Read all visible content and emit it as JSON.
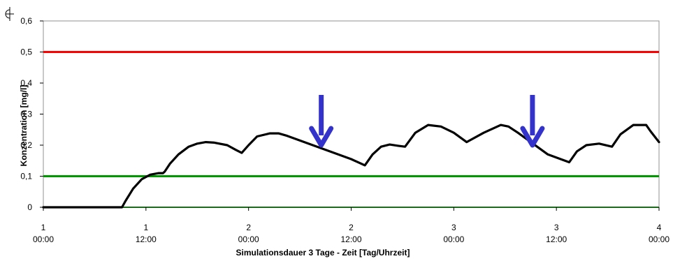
{
  "chart_data": {
    "type": "line",
    "title": "",
    "xlabel": "Simulationsdauer 3 Tage  -  Zeit [Tag/Uhrzeit]",
    "ylabel": "Konzentration [mg/l]",
    "ylim": [
      0,
      0.6
    ],
    "xlim": [
      0,
      72
    ],
    "grid": false,
    "yticks": [
      {
        "value": 0,
        "label": "0"
      },
      {
        "value": 0.1,
        "label": "0,1"
      },
      {
        "value": 0.2,
        "label": "0,2"
      },
      {
        "value": 0.3,
        "label": "0,3"
      },
      {
        "value": 0.4,
        "label": "0,4"
      },
      {
        "value": 0.5,
        "label": "0,5"
      },
      {
        "value": 0.6,
        "label": "0,6"
      }
    ],
    "xticks": [
      {
        "value": 0,
        "day": "1",
        "time": "00:00"
      },
      {
        "value": 12,
        "day": "1",
        "time": "12:00"
      },
      {
        "value": 24,
        "day": "2",
        "time": "00:00"
      },
      {
        "value": 36,
        "day": "2",
        "time": "12:00"
      },
      {
        "value": 48,
        "day": "3",
        "time": "00:00"
      },
      {
        "value": 60,
        "day": "3",
        "time": "12:00"
      },
      {
        "value": 72,
        "day": "4",
        "time": "00:00"
      }
    ],
    "reference_lines": [
      {
        "value": 0.5,
        "color": "#ff0000"
      },
      {
        "value": 0.1,
        "color": "#009900"
      }
    ],
    "series": [
      {
        "color": "#000000",
        "x": [
          0,
          6,
          9.2,
          9.6,
          10.5,
          11.5,
          12.5,
          13.5,
          14,
          14.2,
          14.8,
          15.8,
          17,
          18,
          19,
          20,
          21.5,
          22.5,
          23.2,
          24,
          25,
          26.5,
          27.5,
          28.5,
          31,
          33.5,
          36,
          37.6,
          38.5,
          39.5,
          40.5,
          41.5,
          42.3,
          43.5,
          45,
          46.5,
          48,
          49.5,
          51.5,
          53.5,
          54.4,
          55.5,
          57,
          59,
          61.5,
          62.4,
          63.5,
          65,
          66.5,
          67.5,
          69,
          70.5,
          71,
          72
        ],
        "y": [
          0,
          0,
          0,
          0.02,
          0.06,
          0.09,
          0.105,
          0.11,
          0.11,
          0.115,
          0.14,
          0.17,
          0.195,
          0.205,
          0.21,
          0.208,
          0.2,
          0.185,
          0.175,
          0.2,
          0.228,
          0.238,
          0.238,
          0.23,
          0.205,
          0.18,
          0.155,
          0.135,
          0.17,
          0.195,
          0.202,
          0.198,
          0.195,
          0.24,
          0.265,
          0.26,
          0.24,
          0.21,
          0.24,
          0.265,
          0.26,
          0.24,
          0.21,
          0.17,
          0.145,
          0.18,
          0.2,
          0.205,
          0.195,
          0.235,
          0.265,
          0.265,
          0.245,
          0.21
        ]
      }
    ],
    "annotations": [
      {
        "type": "arrow",
        "x": 32.5,
        "y": 0.2,
        "color": "#3333cc"
      },
      {
        "type": "arrow",
        "x": 57.2,
        "y": 0.2,
        "color": "#3333cc"
      }
    ]
  }
}
